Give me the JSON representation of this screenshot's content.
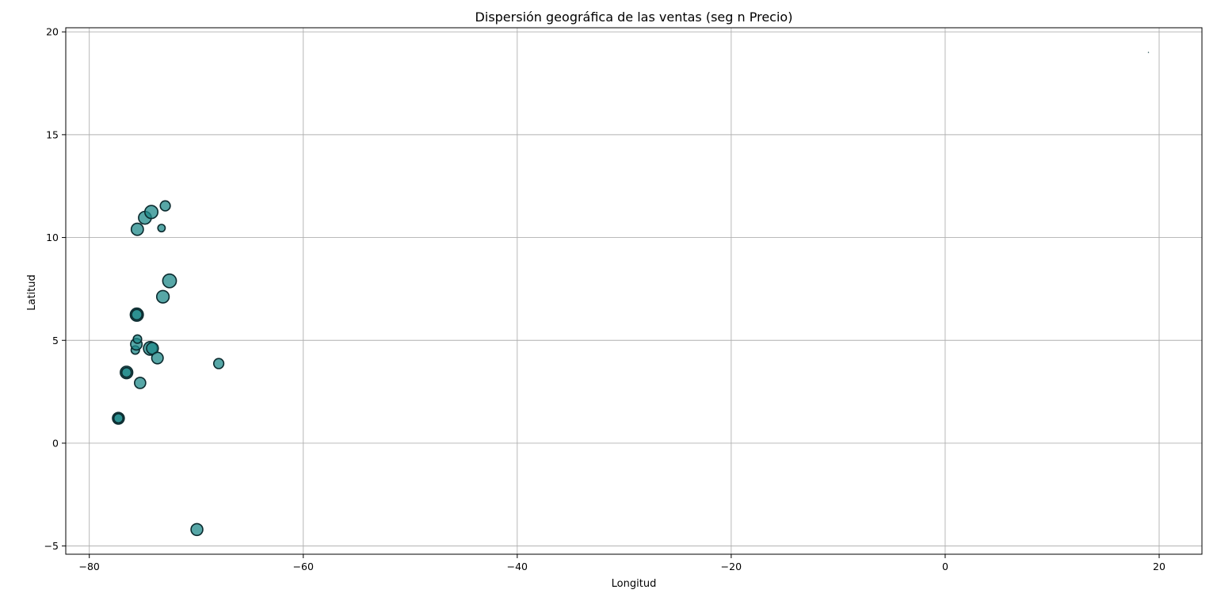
{
  "chart_data": {
    "type": "scatter",
    "title": "Dispersión geográfica de las ventas (seg n Precio)",
    "xlabel": "Longitud",
    "ylabel": "Latitud",
    "xlim": [
      -82.2,
      24
    ],
    "ylim": [
      -5.4,
      20.2
    ],
    "xticks": [
      -80,
      -60,
      -40,
      -20,
      0,
      20
    ],
    "yticks": [
      -5,
      0,
      5,
      10,
      15,
      20
    ],
    "xtick_labels": [
      "−80",
      "−60",
      "−40",
      "−20",
      "0",
      "20"
    ],
    "ytick_labels": [
      "−5",
      "0",
      "5",
      "10",
      "15",
      "20"
    ],
    "grid": true,
    "marker_color": "#1f8a8a",
    "edge_color": "#0b2a2e",
    "points": [
      {
        "x": -77.28,
        "y": 1.21,
        "s": 90
      },
      {
        "x": -77.28,
        "y": 1.21,
        "s": 55
      },
      {
        "x": -76.52,
        "y": 3.44,
        "s": 100
      },
      {
        "x": -76.52,
        "y": 3.44,
        "s": 60
      },
      {
        "x": -75.25,
        "y": 2.93,
        "s": 80
      },
      {
        "x": -75.7,
        "y": 4.53,
        "s": 45
      },
      {
        "x": -75.6,
        "y": 4.81,
        "s": 85
      },
      {
        "x": -75.5,
        "y": 5.06,
        "s": 45
      },
      {
        "x": -75.56,
        "y": 6.25,
        "s": 110
      },
      {
        "x": -75.56,
        "y": 6.25,
        "s": 70
      },
      {
        "x": -74.3,
        "y": 4.61,
        "s": 120
      },
      {
        "x": -74.1,
        "y": 4.61,
        "s": 90
      },
      {
        "x": -73.63,
        "y": 4.14,
        "s": 85
      },
      {
        "x": -67.9,
        "y": 3.87,
        "s": 65
      },
      {
        "x": -73.12,
        "y": 7.12,
        "s": 100
      },
      {
        "x": -72.5,
        "y": 7.89,
        "s": 120
      },
      {
        "x": -75.51,
        "y": 10.4,
        "s": 95
      },
      {
        "x": -73.25,
        "y": 10.46,
        "s": 35
      },
      {
        "x": -74.8,
        "y": 10.96,
        "s": 105
      },
      {
        "x": -74.2,
        "y": 11.24,
        "s": 110
      },
      {
        "x": -72.9,
        "y": 11.54,
        "s": 65
      },
      {
        "x": -69.94,
        "y": -4.2,
        "s": 90
      },
      {
        "x": 19.0,
        "y": 19.0,
        "s": 0.5
      }
    ]
  }
}
